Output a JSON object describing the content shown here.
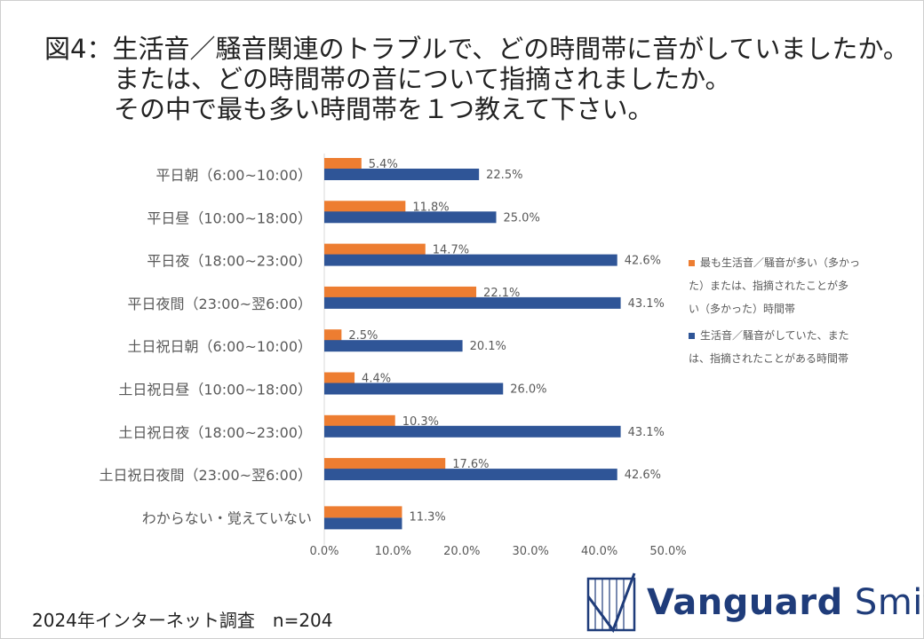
{
  "title_lines": [
    "図4：生活音／騒音関連のトラブルで、どの時間帯に音がしていましたか。",
    "または、どの時間帯の音について指摘されましたか。",
    "その中で最も多い時間帯を１つ教えて下さい。"
  ],
  "footer": "2024年インターネット調査　n=204",
  "logo": {
    "bold": "Vanguard",
    "light": "Smith"
  },
  "colors": {
    "orange": "#ed7d31",
    "blue": "#2f5597",
    "axis_text": "#595959",
    "grid": "#d9d9d9"
  },
  "chart_data": {
    "type": "bar",
    "orientation": "horizontal",
    "categories": [
      "平日朝（6:00~10:00）",
      "平日昼（10:00~18:00）",
      "平日夜（18:00~23:00）",
      "平日夜間（23:00~翌6:00）",
      "土日祝日朝（6:00~10:00）",
      "土日祝日昼（10:00~18:00）",
      "土日祝日夜（18:00~23:00）",
      "土日祝日夜間（23:00~翌6:00）",
      "わからない・覚えていない"
    ],
    "series": [
      {
        "name": "最も生活音／騒音が多い（多かった）または、指摘されたことが多い（多かった）時間帯",
        "legend_lines": [
          "最も生活音／騒音が多い（多かっ",
          "た）または、指摘されたことが多",
          "い（多かった）時間帯"
        ],
        "color": "#ed7d31",
        "values": [
          5.4,
          11.8,
          14.7,
          22.1,
          2.5,
          4.4,
          10.3,
          17.6,
          11.3
        ],
        "labels": [
          "5.4%",
          "11.8%",
          "14.7%",
          "22.1%",
          "2.5%",
          "4.4%",
          "10.3%",
          "17.6%",
          "11.3%"
        ]
      },
      {
        "name": "生活音／騒音がしていた、または、指摘されたことがある時間帯",
        "legend_lines": [
          "生活音／騒音がしていた、また",
          "は、指摘されたことがある時間帯"
        ],
        "color": "#2f5597",
        "values": [
          22.5,
          25.0,
          42.6,
          43.1,
          20.1,
          26.0,
          43.1,
          42.6,
          null
        ],
        "labels": [
          "22.5%",
          "25.0%",
          "42.6%",
          "43.1%",
          "20.1%",
          "26.0%",
          "43.1%",
          "42.6%",
          ""
        ]
      }
    ],
    "xlim": [
      0,
      50
    ],
    "xticks": [
      "0.0%",
      "10.0%",
      "20.0%",
      "30.0%",
      "40.0%",
      "50.0%"
    ],
    "legend_position": "right"
  }
}
